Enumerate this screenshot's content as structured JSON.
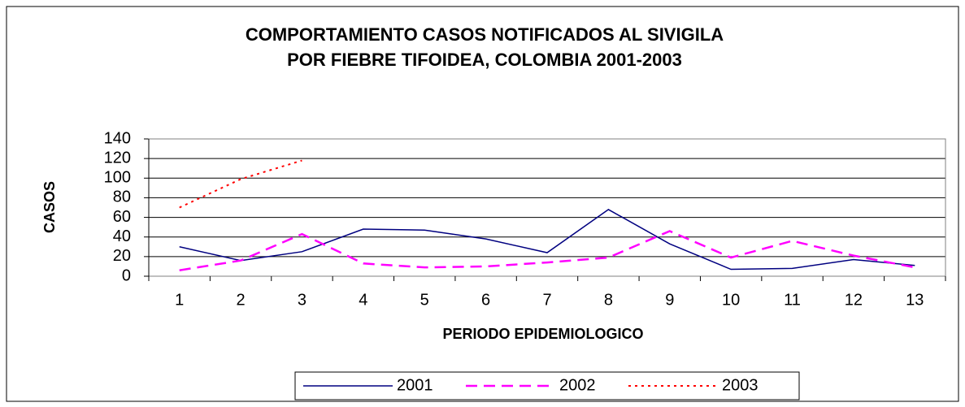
{
  "chart_data": {
    "type": "line",
    "title": [
      "COMPORTAMIENTO CASOS NOTIFICADOS AL SIVIGILA",
      "POR FIEBRE TIFOIDEA, COLOMBIA 2001-2003"
    ],
    "x_label": "PERIODO EPIDEMIOLOGICO",
    "y_label": "CASOS",
    "categories": [
      "1",
      "2",
      "3",
      "4",
      "5",
      "6",
      "7",
      "8",
      "9",
      "10",
      "11",
      "12",
      "13"
    ],
    "series": [
      {
        "name": "2001",
        "color": "#000080",
        "dash": "solid",
        "values": [
          30,
          16,
          25,
          48,
          47,
          38,
          24,
          68,
          33,
          7,
          8,
          17,
          11
        ]
      },
      {
        "name": "2002",
        "color": "#ff00ff",
        "dash": "dashed",
        "values": [
          6,
          16,
          43,
          13,
          9,
          10,
          14,
          19,
          46,
          19,
          36,
          21,
          9
        ]
      },
      {
        "name": "2003",
        "color": "#ff0000",
        "dash": "dotted",
        "values": [
          70,
          99,
          118,
          null,
          null,
          null,
          null,
          null,
          null,
          null,
          null,
          null,
          null
        ]
      }
    ],
    "ylim": [
      0,
      140
    ],
    "yticks": [
      0,
      20,
      40,
      60,
      80,
      100,
      120,
      140
    ],
    "grid": true,
    "legend": "bottom"
  }
}
